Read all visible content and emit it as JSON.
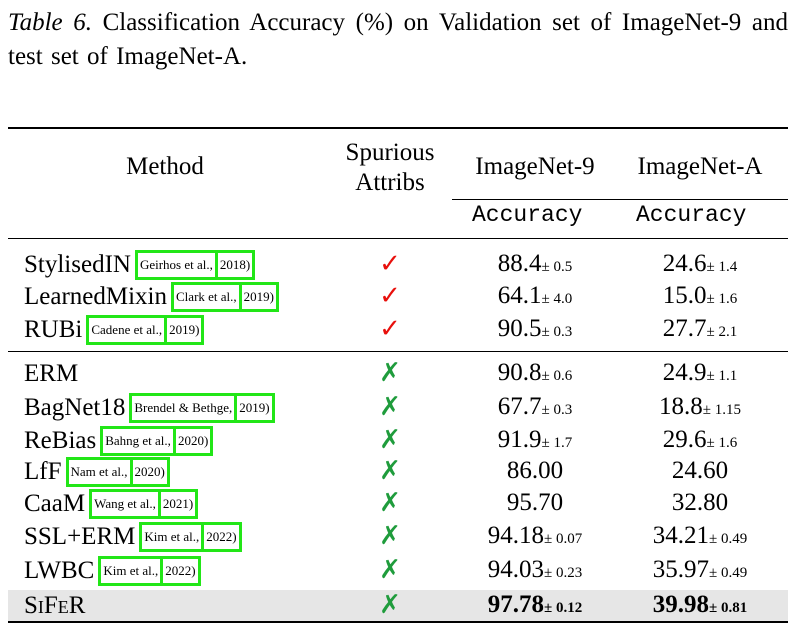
{
  "caption": {
    "label": "Table 6.",
    "text": " Classification Accuracy (%) on Validation set of ImageNet-9 and test set of ImageNet-A."
  },
  "header": {
    "method": "Method",
    "spurious": "Spurious",
    "attribs": "Attribs",
    "imagenet9": "ImageNet-9",
    "imagenetA": "ImageNet-A",
    "acc9": "Accuracy",
    "accA": "Accuracy"
  },
  "colors": {
    "check": "#e8100c",
    "cross": "#1f9c3c",
    "cite_box": "#22e617",
    "highlight_row": "#e6e6e6"
  },
  "group1": [
    {
      "method": "StylisedIN",
      "cite1": "Geirhos et al.,",
      "cite2": "2018)",
      "mark": "✓",
      "in9": "88.4",
      "in9_pm": "± 0.5",
      "inA": "24.6",
      "inA_pm": "± 1.4"
    },
    {
      "method": "LearnedMixin",
      "cite1": "Clark et al.,",
      "cite2": "2019)",
      "mark": "✓",
      "in9": "64.1",
      "in9_pm": "± 4.0",
      "inA": "15.0",
      "inA_pm": "± 1.6"
    },
    {
      "method": "RUBi",
      "cite1": "Cadene et al.,",
      "cite2": "2019)",
      "mark": "✓",
      "in9": "90.5",
      "in9_pm": "± 0.3",
      "inA": "27.7",
      "inA_pm": "± 2.1"
    }
  ],
  "group2": [
    {
      "method": "ERM",
      "cite1": "",
      "cite2": "",
      "mark": "✗",
      "in9": "90.8",
      "in9_pm": "± 0.6",
      "inA": "24.9",
      "inA_pm": "± 1.1"
    },
    {
      "method": "BagNet18",
      "cite1": "Brendel & Bethge,",
      "cite2": "2019)",
      "mark": "✗",
      "in9": "67.7",
      "in9_pm": "± 0.3",
      "inA": "18.8",
      "inA_pm": "± 1.15"
    },
    {
      "method": "ReBias",
      "cite1": "Bahng et al.,",
      "cite2": "2020)",
      "mark": "✗",
      "in9": "91.9",
      "in9_pm": "± 1.7",
      "inA": "29.6",
      "inA_pm": "± 1.6"
    },
    {
      "method": "LfF",
      "cite1": "Nam et al.,",
      "cite2": "2020)",
      "mark": "✗",
      "in9": "86.00",
      "in9_pm": "",
      "inA": "24.60",
      "inA_pm": ""
    },
    {
      "method": "CaaM",
      "cite1": "Wang et al.,",
      "cite2": "2021)",
      "mark": "✗",
      "in9": "95.70",
      "in9_pm": "",
      "inA": "32.80",
      "inA_pm": ""
    },
    {
      "method": "SSL+ERM",
      "cite1": "Kim et al.,",
      "cite2": "2022)",
      "mark": "✗",
      "in9": "94.18",
      "in9_pm": "± 0.07",
      "inA": "34.21",
      "inA_pm": "± 0.49"
    },
    {
      "method": "LWBC",
      "cite1": "Kim et al.,",
      "cite2": "2022)",
      "mark": "✗",
      "in9": "94.03",
      "in9_pm": "± 0.23",
      "inA": "35.97",
      "inA_pm": "± 0.49"
    },
    {
      "method": "SiFeR",
      "cite1": "",
      "cite2": "",
      "mark": "✗",
      "in9": "97.78",
      "in9_pm": "± 0.12",
      "inA": "39.98",
      "inA_pm": "± 0.81"
    }
  ]
}
